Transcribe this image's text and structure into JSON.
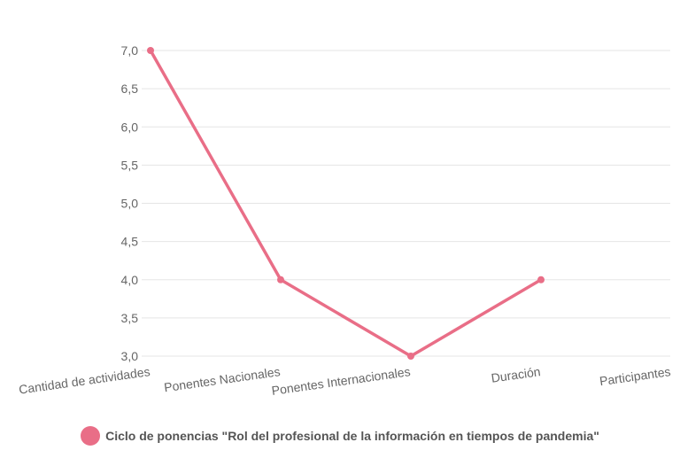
{
  "chart_data": {
    "type": "line",
    "title": "",
    "xlabel": "",
    "ylabel": "",
    "categories": [
      "Cantidad de actividades",
      "Ponentes Nacionales",
      "Ponentes Internacionales",
      "Duración",
      "Participantes"
    ],
    "series": [
      {
        "name": "Ciclo de ponencias \"Rol del profesional de la información en tiempos de pandemia\"",
        "values": [
          7,
          4,
          3,
          4,
          null
        ],
        "color": "#e96e87"
      }
    ],
    "ylim": [
      3,
      7
    ],
    "yticks": [
      "3,0",
      "3,5",
      "4,0",
      "4,5",
      "5,0",
      "5,5",
      "6,0",
      "6,5",
      "7,0"
    ],
    "ytick_values": [
      3,
      3.5,
      4,
      4.5,
      5,
      5.5,
      6,
      6.5,
      7
    ],
    "grid": true,
    "legend": "bottom"
  }
}
